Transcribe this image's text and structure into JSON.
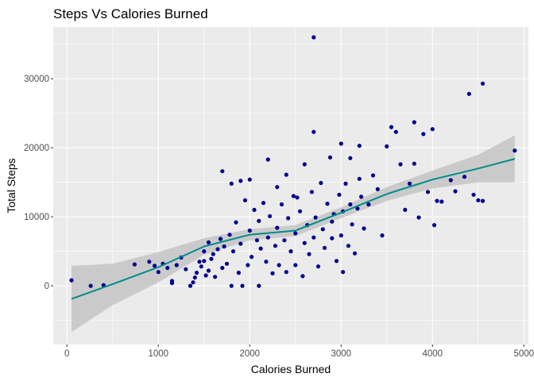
{
  "chart_data": {
    "type": "scatter",
    "title": "Steps Vs Calories Burned",
    "xlabel": "Calories Burned",
    "ylabel": "Total Steps",
    "xlim": [
      -150,
      5050
    ],
    "ylim": [
      -8500,
      37500
    ],
    "x_ticks": [
      0,
      1000,
      2000,
      3000,
      4000,
      5000
    ],
    "y_ticks": [
      0,
      10000,
      20000,
      30000
    ],
    "x_tick_labels": [
      "0",
      "1000",
      "2000",
      "3000",
      "4000",
      "5000"
    ],
    "y_tick_labels": [
      "0",
      "10000",
      "20000",
      "30000"
    ],
    "grid": true,
    "colors": {
      "panel_background": "#ebebeb",
      "grid_major": "#ffffff",
      "point": "#00008b",
      "smooth_line": "#008b8b",
      "confidence_band": "#c4c4c4"
    },
    "points": [
      [
        50,
        800
      ],
      [
        260,
        0
      ],
      [
        400,
        100
      ],
      [
        740,
        3100
      ],
      [
        900,
        3500
      ],
      [
        960,
        2900
      ],
      [
        1000,
        2000
      ],
      [
        1050,
        3200
      ],
      [
        1100,
        2600
      ],
      [
        1150,
        700
      ],
      [
        1150,
        400
      ],
      [
        1200,
        3000
      ],
      [
        1250,
        4100
      ],
      [
        1300,
        2400
      ],
      [
        1350,
        0
      ],
      [
        1380,
        500
      ],
      [
        1400,
        1200
      ],
      [
        1420,
        1900
      ],
      [
        1450,
        3500
      ],
      [
        1470,
        2800
      ],
      [
        1500,
        5000
      ],
      [
        1500,
        3600
      ],
      [
        1520,
        1500
      ],
      [
        1550,
        2200
      ],
      [
        1550,
        6300
      ],
      [
        1580,
        3900
      ],
      [
        1600,
        4600
      ],
      [
        1620,
        1300
      ],
      [
        1650,
        5300
      ],
      [
        1680,
        6800
      ],
      [
        1700,
        16600
      ],
      [
        1700,
        2600
      ],
      [
        1720,
        5700
      ],
      [
        1750,
        3200
      ],
      [
        1780,
        7400
      ],
      [
        1800,
        0
      ],
      [
        1800,
        14800
      ],
      [
        1820,
        5000
      ],
      [
        1850,
        9200
      ],
      [
        1880,
        1900
      ],
      [
        1900,
        15200
      ],
      [
        1900,
        6100
      ],
      [
        1920,
        0
      ],
      [
        1950,
        12400
      ],
      [
        1980,
        3000
      ],
      [
        2000,
        15400
      ],
      [
        2000,
        8000
      ],
      [
        2020,
        4200
      ],
      [
        2050,
        11000
      ],
      [
        2080,
        6600
      ],
      [
        2100,
        0
      ],
      [
        2100,
        9400
      ],
      [
        2120,
        5400
      ],
      [
        2150,
        12000
      ],
      [
        2180,
        3500
      ],
      [
        2200,
        18300
      ],
      [
        2200,
        7000
      ],
      [
        2220,
        10100
      ],
      [
        2250,
        1800
      ],
      [
        2280,
        5800
      ],
      [
        2300,
        14300
      ],
      [
        2300,
        8400
      ],
      [
        2320,
        3000
      ],
      [
        2350,
        11800
      ],
      [
        2380,
        6600
      ],
      [
        2400,
        16100
      ],
      [
        2400,
        2000
      ],
      [
        2420,
        9800
      ],
      [
        2450,
        5000
      ],
      [
        2480,
        13000
      ],
      [
        2500,
        7600
      ],
      [
        2500,
        3000
      ],
      [
        2520,
        12800
      ],
      [
        2550,
        10800
      ],
      [
        2580,
        1400
      ],
      [
        2600,
        17600
      ],
      [
        2600,
        6200
      ],
      [
        2630,
        8800
      ],
      [
        2650,
        4600
      ],
      [
        2680,
        13600
      ],
      [
        2700,
        22300
      ],
      [
        2700,
        36000
      ],
      [
        2700,
        7000
      ],
      [
        2720,
        9900
      ],
      [
        2750,
        2800
      ],
      [
        2780,
        14900
      ],
      [
        2800,
        8200
      ],
      [
        2820,
        5500
      ],
      [
        2850,
        11900
      ],
      [
        2880,
        18600
      ],
      [
        2900,
        6900
      ],
      [
        2900,
        9300
      ],
      [
        2920,
        10400
      ],
      [
        2950,
        3600
      ],
      [
        2980,
        13200
      ],
      [
        3000,
        20600
      ],
      [
        3000,
        7300
      ],
      [
        3020,
        10800
      ],
      [
        3020,
        2000
      ],
      [
        3050,
        14800
      ],
      [
        3080,
        5800
      ],
      [
        3100,
        18500
      ],
      [
        3100,
        11800
      ],
      [
        3120,
        8900
      ],
      [
        3150,
        4700
      ],
      [
        3180,
        11200
      ],
      [
        3200,
        15500
      ],
      [
        3200,
        20300
      ],
      [
        3220,
        12900
      ],
      [
        3250,
        8300
      ],
      [
        3300,
        11800
      ],
      [
        3350,
        16000
      ],
      [
        3400,
        14000
      ],
      [
        3450,
        7300
      ],
      [
        3500,
        20200
      ],
      [
        3550,
        23000
      ],
      [
        3600,
        22300
      ],
      [
        3650,
        17600
      ],
      [
        3700,
        11000
      ],
      [
        3750,
        14800
      ],
      [
        3800,
        17700
      ],
      [
        3800,
        23700
      ],
      [
        3850,
        9900
      ],
      [
        3900,
        22000
      ],
      [
        3950,
        13600
      ],
      [
        4000,
        22700
      ],
      [
        4020,
        8800
      ],
      [
        4050,
        12300
      ],
      [
        4100,
        12200
      ],
      [
        4200,
        15300
      ],
      [
        4250,
        13700
      ],
      [
        4350,
        15800
      ],
      [
        4400,
        27800
      ],
      [
        4450,
        13200
      ],
      [
        4500,
        12400
      ],
      [
        4550,
        29300
      ],
      [
        4550,
        12300
      ],
      [
        4900,
        19600
      ]
    ],
    "smooth": {
      "x": [
        50,
        500,
        1000,
        1500,
        2000,
        2500,
        3000,
        3500,
        4000,
        4500,
        4900
      ],
      "y": [
        -1900,
        250,
        2700,
        5700,
        7400,
        8000,
        10600,
        13300,
        15400,
        17000,
        18400
      ],
      "band_low": [
        -6700,
        -2800,
        500,
        4500,
        6600,
        7200,
        9800,
        12300,
        14100,
        15000,
        15000
      ],
      "band_high": [
        2900,
        3200,
        4900,
        6900,
        8200,
        8800,
        11400,
        14300,
        16700,
        19000,
        21800
      ]
    }
  }
}
